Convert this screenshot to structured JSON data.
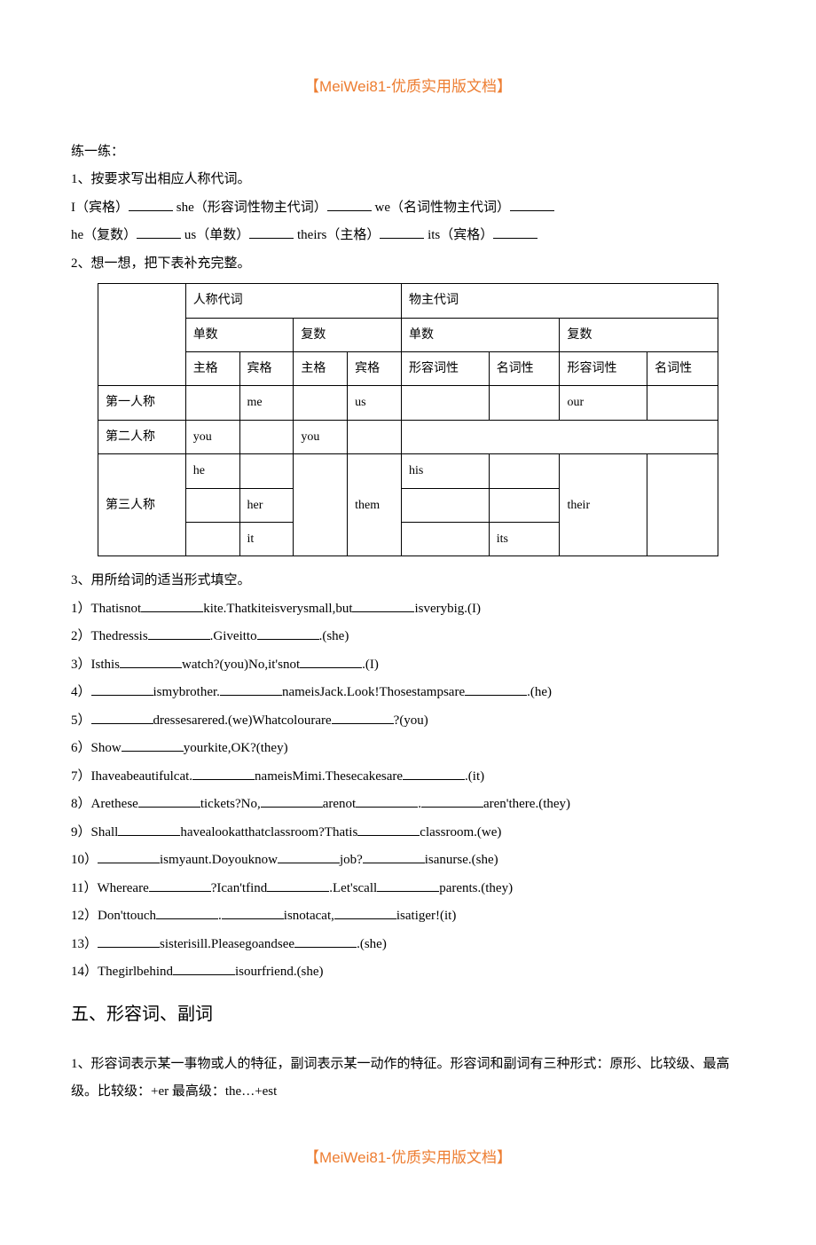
{
  "header": "【MeiWei81-优质实用版文档】",
  "footer": "【MeiWei81-优质实用版文档】",
  "practice_title": "练一练：",
  "q1": {
    "title": "1、按要求写出相应人称代词。",
    "row1": [
      {
        "pre": "I（宾格）",
        "w": "w50"
      },
      {
        "pre": "she（形容词性物主代词）",
        "w": "w50"
      },
      {
        "pre": "we（名词性物主代词）",
        "w": "w50"
      }
    ],
    "row2": [
      {
        "pre": "he（复数）",
        "w": "w50"
      },
      {
        "pre": "us（单数）",
        "w": "w50"
      },
      {
        "pre": "theirs（主格）",
        "w": "w50"
      },
      {
        "pre": "its（宾格）",
        "w": "w50"
      }
    ]
  },
  "q2": {
    "title": "2、想一想，把下表补充完整。",
    "table": {
      "header_main": [
        "人称代词",
        "物主代词"
      ],
      "header_sub": [
        "单数",
        "复数",
        "单数",
        "复数"
      ],
      "header_leaf": [
        "主格",
        "宾格",
        "主格",
        "宾格",
        "形容词性",
        "名词性",
        "形容词性",
        "名词性"
      ],
      "row_labels": [
        "第一人称",
        "第二人称",
        "第三人称"
      ],
      "cells": {
        "r1": [
          "",
          "me",
          "",
          "us",
          "",
          "",
          "our",
          ""
        ],
        "r2": [
          "you",
          "",
          "you",
          "",
          "",
          "",
          "",
          ""
        ],
        "r3a": [
          "he",
          "",
          "",
          "",
          "his",
          "",
          "",
          ""
        ],
        "r3b": [
          "",
          "her",
          "",
          "them",
          "",
          "",
          "their",
          ""
        ],
        "r3c": [
          "",
          "it",
          "",
          "",
          "",
          "its",
          "",
          ""
        ]
      }
    }
  },
  "q3": {
    "title": "3、用所给词的适当形式填空。",
    "items": [
      {
        "n": "1）",
        "segs": [
          "Thatisnot",
          "kite.Thatkiteisverysmall,but",
          "isverybig.(I)"
        ]
      },
      {
        "n": "2）",
        "segs": [
          "Thedressis",
          ".Giveitto",
          ".(she)"
        ]
      },
      {
        "n": "3）",
        "segs": [
          "Isthis",
          "watch?(you)No,it'snot",
          ".(I)"
        ]
      },
      {
        "n": "4）",
        "segs": [
          "",
          "ismybrother.",
          "nameisJack.Look!Thosestampsare",
          ".(he)"
        ]
      },
      {
        "n": "5）",
        "segs": [
          "",
          "dressesarered.(we)Whatcolourare",
          "?(you)"
        ]
      },
      {
        "n": "6）",
        "segs": [
          "Show",
          "yourkite,OK?(they)"
        ]
      },
      {
        "n": "7）",
        "segs": [
          "Ihaveabeautifulcat.",
          "nameisMimi.Thesecakesare",
          ".(it)"
        ]
      },
      {
        "n": "8）",
        "segs": [
          "Arethese",
          "tickets?No,",
          "arenot",
          ".",
          "aren'there.(they)"
        ]
      },
      {
        "n": "9）",
        "segs": [
          "Shall",
          "havealookatthatclassroom?Thatis",
          "classroom.(we)"
        ]
      },
      {
        "n": "10）",
        "segs": [
          "",
          "ismyaunt.Doyouknow",
          "job?",
          "isanurse.(she)"
        ]
      },
      {
        "n": "11）",
        "segs": [
          "Whereare",
          "?Ican'tfind",
          ".Let'scall",
          "parents.(they)"
        ]
      },
      {
        "n": "12）",
        "segs": [
          "Don'ttouch",
          ".",
          "isnotacat,",
          "isatiger!(it)"
        ]
      },
      {
        "n": "13）",
        "segs": [
          "",
          "sisterisill.Pleasegoandsee",
          ".(she)"
        ]
      },
      {
        "n": "14）",
        "segs": [
          "Thegirlbehind",
          "isourfriend.(she)"
        ]
      }
    ]
  },
  "section5": {
    "title": "五、形容词、副词",
    "body": "1、形容词表示某一事物或人的特征，副词表示某一动作的特征。形容词和副词有三种形式：原形、比较级、最高级。比较级：+er 最高级：the…+est"
  },
  "colors": {
    "accent": "#ed7d31",
    "text": "#000000",
    "background": "#ffffff",
    "border": "#000000"
  }
}
